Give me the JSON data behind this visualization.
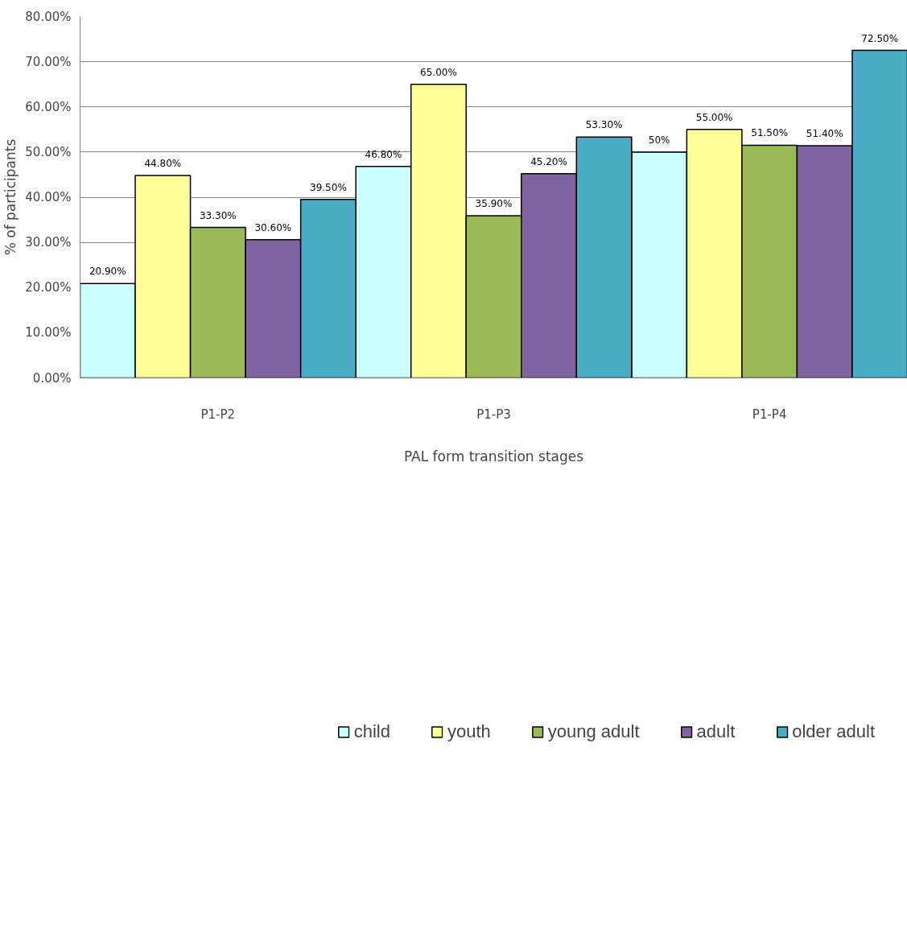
{
  "chart_data": {
    "type": "bar",
    "xlabel": "PAL form transition stages",
    "ylabel": "% of participants",
    "categories": [
      "P1-P2",
      "P1-P3",
      "P1-P4"
    ],
    "series": [
      {
        "name": "child",
        "color": "#ccffff",
        "values": [
          20.9,
          46.8,
          50
        ],
        "value_labels": [
          "20.90%",
          "46.80%",
          "50%"
        ]
      },
      {
        "name": "youth",
        "color": "#ffff99",
        "values": [
          44.8,
          65,
          55
        ],
        "value_labels": [
          "44.80%",
          "65.00%",
          "55.00%"
        ]
      },
      {
        "name": "young adult",
        "color": "#9bbb59",
        "values": [
          33.3,
          35.9,
          51.5
        ],
        "value_labels": [
          "33.30%",
          "35.90%",
          "51.50%"
        ]
      },
      {
        "name": "adult",
        "color": "#8064a2",
        "values": [
          30.6,
          45.2,
          51.4
        ],
        "value_labels": [
          "30.60%",
          "45.20%",
          "51.40%"
        ]
      },
      {
        "name": "older adult",
        "color": "#4bacc6",
        "values": [
          39.5,
          53.3,
          72.5
        ],
        "value_labels": [
          "39.50%",
          "53.30%",
          "72.50%"
        ]
      }
    ],
    "ylim": [
      0,
      80
    ],
    "yticks": [
      {
        "value": 0,
        "label": "0.00%"
      },
      {
        "value": 10,
        "label": "10.00%"
      },
      {
        "value": 20,
        "label": "20.00%"
      },
      {
        "value": 30,
        "label": "30.00%"
      },
      {
        "value": 40,
        "label": "40.00%"
      },
      {
        "value": 50,
        "label": "50.00%"
      },
      {
        "value": 60,
        "label": "60.00%"
      },
      {
        "value": 70,
        "label": "70.00%"
      },
      {
        "value": 80,
        "label": "80.00%"
      }
    ],
    "grid": "y",
    "legend": "bottom"
  }
}
